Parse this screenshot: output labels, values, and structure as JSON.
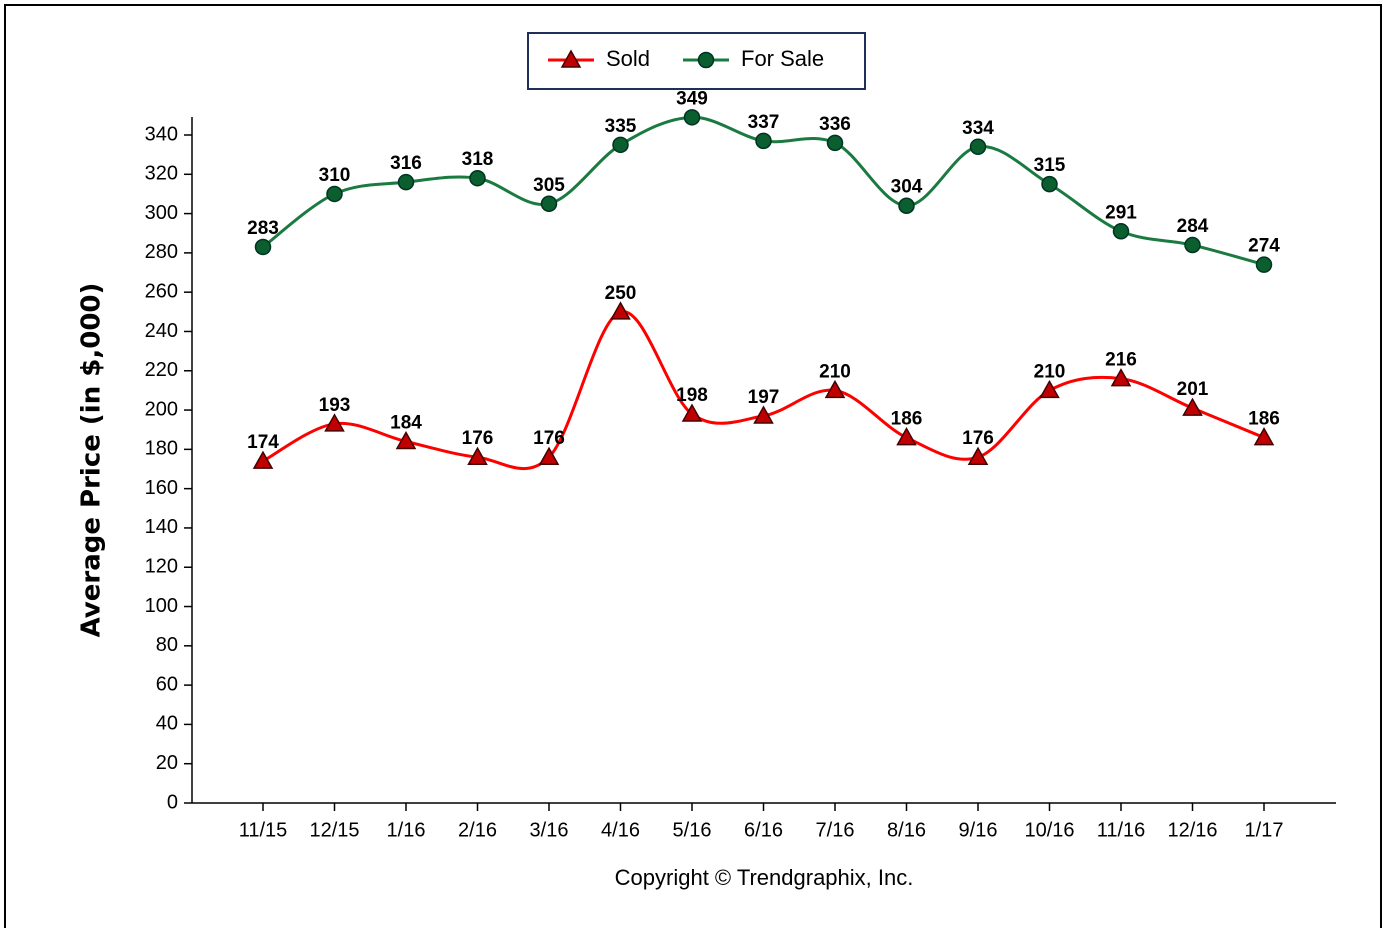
{
  "chart_data": {
    "type": "line",
    "y_label": "Average Price (in $,000)",
    "footer": "Copyright © Trendgraphix, Inc.",
    "categories": [
      "11/15",
      "12/15",
      "1/16",
      "2/16",
      "3/16",
      "4/16",
      "5/16",
      "6/16",
      "7/16",
      "8/16",
      "9/16",
      "10/16",
      "11/16",
      "12/16",
      "1/17"
    ],
    "series": [
      {
        "name": "Sold",
        "color": "#ff0000",
        "marker": "triangle",
        "marker_color": "#c00000",
        "values": [
          174,
          193,
          184,
          176,
          176,
          250,
          198,
          197,
          210,
          186,
          176,
          210,
          216,
          201,
          186
        ]
      },
      {
        "name": "For Sale",
        "color": "#1a7a40",
        "marker": "circle",
        "marker_color": "#0b5e2e",
        "values": [
          283,
          310,
          316,
          318,
          305,
          335,
          349,
          337,
          336,
          304,
          334,
          315,
          291,
          284,
          274
        ]
      }
    ],
    "ylim": [
      0,
      350
    ],
    "yticks": [
      0,
      20,
      40,
      60,
      80,
      100,
      120,
      140,
      160,
      180,
      200,
      220,
      240,
      260,
      280,
      300,
      320,
      340
    ],
    "smooth": true,
    "legend": "top"
  }
}
